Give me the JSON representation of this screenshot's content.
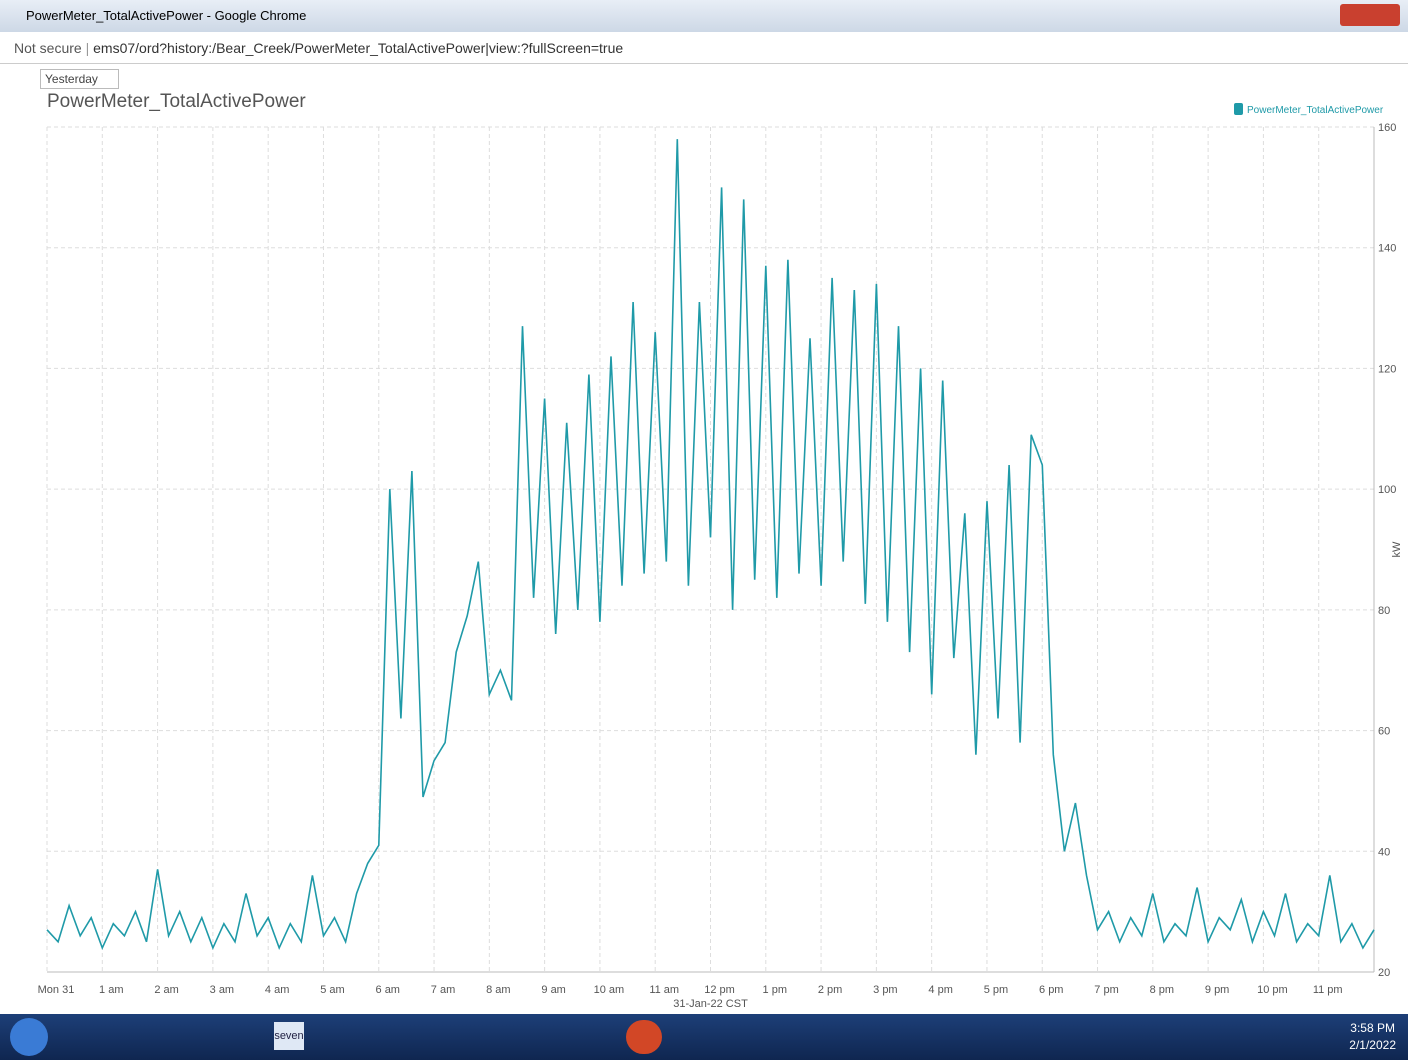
{
  "window": {
    "title": "PowerMeter_TotalActivePower - Google Chrome"
  },
  "address_bar": {
    "security": "Not secure",
    "url": "ems07/ord?history:/Bear_Creek/PowerMeter_TotalActivePower|view:?fullScreen=true"
  },
  "toolbar": {
    "range": "Yesterday"
  },
  "taskbar": {
    "app_label": "seven",
    "time": "3:58 PM",
    "date": "2/1/2022"
  },
  "chart_data": {
    "type": "line",
    "title": "PowerMeter_TotalActivePower",
    "y_label": "kW",
    "x_note": "31-Jan-22 CST",
    "legend": "top-right",
    "grid": true,
    "x": [
      0,
      0.2,
      0.4,
      0.6,
      0.8,
      1,
      1.2,
      1.4,
      1.6,
      1.8,
      2,
      2.2,
      2.4,
      2.6,
      2.8,
      3,
      3.2,
      3.4,
      3.6,
      3.8,
      4,
      4.2,
      4.4,
      4.6,
      4.8,
      5,
      5.2,
      5.4,
      5.6,
      5.8,
      6,
      6.2,
      6.4,
      6.6,
      6.8,
      7,
      7.2,
      7.4,
      7.6,
      7.8,
      8,
      8.2,
      8.4,
      8.6,
      8.8,
      9,
      9.2,
      9.4,
      9.6,
      9.8,
      10,
      10.2,
      10.4,
      10.6,
      10.8,
      11,
      11.2,
      11.4,
      11.6,
      11.8,
      12,
      12.2,
      12.4,
      12.6,
      12.8,
      13,
      13.2,
      13.4,
      13.6,
      13.8,
      14,
      14.2,
      14.4,
      14.6,
      14.8,
      15,
      15.2,
      15.4,
      15.6,
      15.8,
      16,
      16.2,
      16.4,
      16.6,
      16.8,
      17,
      17.2,
      17.4,
      17.6,
      17.8,
      18,
      18.2,
      18.4,
      18.6,
      18.8,
      19,
      19.2,
      19.4,
      19.6,
      19.8,
      20,
      20.2,
      20.4,
      20.6,
      20.8,
      21,
      21.2,
      21.4,
      21.6,
      21.8,
      22,
      22.2,
      22.4,
      22.6,
      22.8,
      23,
      23.2,
      23.4,
      23.6,
      23.8,
      24
    ],
    "series": [
      {
        "name": "PowerMeter_TotalActivePower",
        "color": "#1f9aa8",
        "values": [
          27,
          25,
          31,
          26,
          29,
          24,
          28,
          26,
          30,
          25,
          37,
          26,
          30,
          25,
          29,
          24,
          28,
          25,
          33,
          26,
          29,
          24,
          28,
          25,
          36,
          26,
          29,
          25,
          33,
          38,
          41,
          100,
          62,
          103,
          49,
          55,
          58,
          73,
          79,
          88,
          66,
          70,
          65,
          127,
          82,
          115,
          76,
          111,
          80,
          119,
          78,
          122,
          84,
          131,
          86,
          126,
          88,
          158,
          84,
          131,
          92,
          150,
          80,
          148,
          85,
          137,
          82,
          138,
          86,
          125,
          84,
          135,
          88,
          133,
          81,
          134,
          78,
          127,
          73,
          120,
          66,
          118,
          72,
          96,
          56,
          98,
          62,
          104,
          58,
          109,
          104,
          56,
          40,
          48,
          36,
          27,
          30,
          25,
          29,
          26,
          33,
          25,
          28,
          26,
          34,
          25,
          29,
          27,
          32,
          25,
          30,
          26,
          33,
          25,
          28,
          26,
          36,
          25,
          28,
          24,
          27
        ]
      }
    ],
    "xlim": [
      0,
      24
    ],
    "xticks": [
      {
        "value": 0,
        "label": "Mon 31"
      },
      {
        "value": 1,
        "label": "1 am"
      },
      {
        "value": 2,
        "label": "2 am"
      },
      {
        "value": 3,
        "label": "3 am"
      },
      {
        "value": 4,
        "label": "4 am"
      },
      {
        "value": 5,
        "label": "5 am"
      },
      {
        "value": 6,
        "label": "6 am"
      },
      {
        "value": 7,
        "label": "7 am"
      },
      {
        "value": 8,
        "label": "8 am"
      },
      {
        "value": 9,
        "label": "9 am"
      },
      {
        "value": 10,
        "label": "10 am"
      },
      {
        "value": 11,
        "label": "11 am"
      },
      {
        "value": 12,
        "label": "12 pm"
      },
      {
        "value": 13,
        "label": "1 pm"
      },
      {
        "value": 14,
        "label": "2 pm"
      },
      {
        "value": 15,
        "label": "3 pm"
      },
      {
        "value": 16,
        "label": "4 pm"
      },
      {
        "value": 17,
        "label": "5 pm"
      },
      {
        "value": 18,
        "label": "6 pm"
      },
      {
        "value": 19,
        "label": "7 pm"
      },
      {
        "value": 20,
        "label": "8 pm"
      },
      {
        "value": 21,
        "label": "9 pm"
      },
      {
        "value": 22,
        "label": "10 pm"
      },
      {
        "value": 23,
        "label": "11 pm"
      }
    ],
    "ylim": [
      20,
      160
    ],
    "yticks": [
      20,
      40,
      60,
      80,
      100,
      120,
      140,
      160
    ]
  }
}
